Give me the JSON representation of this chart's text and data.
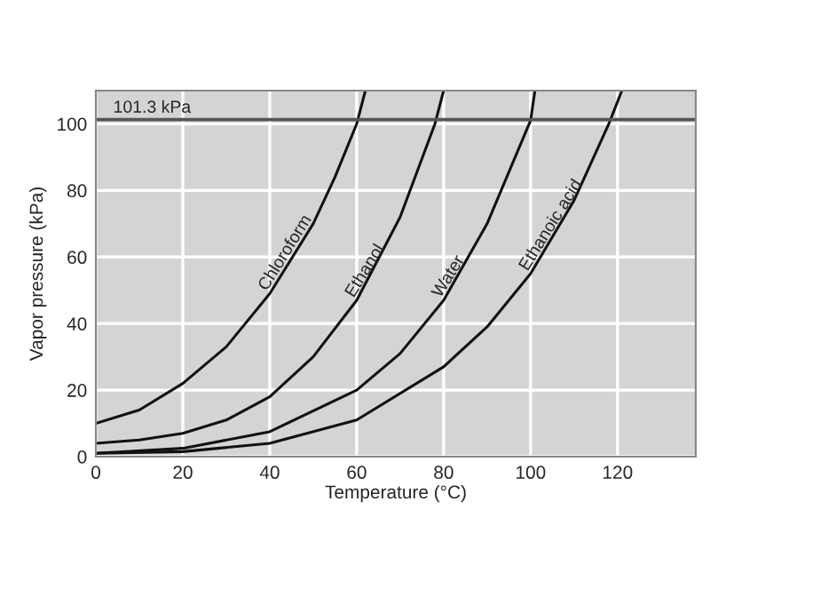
{
  "chart_data": {
    "type": "line",
    "xlabel": "Temperature (°C)",
    "ylabel": "Vapor pressure (kPa)",
    "xlim": [
      0,
      138
    ],
    "ylim": [
      0,
      110
    ],
    "xticks": [
      0,
      20,
      40,
      60,
      80,
      100,
      120
    ],
    "yticks": [
      0,
      20,
      40,
      60,
      80,
      100
    ],
    "grid": true,
    "series": [
      {
        "color": "#111111",
        "x": [
          0,
          10,
          20,
          30,
          40,
          50,
          55,
          60,
          62
        ],
        "values": [
          10,
          14,
          22,
          33,
          49,
          70,
          84,
          100,
          110
        ]
      },
      {
        "color": "#111111",
        "x": [
          0,
          10,
          20,
          30,
          40,
          50,
          60,
          70,
          78,
          80
        ],
        "values": [
          4,
          5,
          7,
          11,
          18,
          30,
          47,
          72,
          100,
          110
        ]
      },
      {
        "color": "#111111",
        "x": [
          0,
          20,
          40,
          60,
          70,
          80,
          90,
          100,
          101
        ],
        "values": [
          1,
          2.5,
          7.5,
          20,
          31,
          47,
          70,
          101,
          110
        ]
      },
      {
        "color": "#111111",
        "x": [
          0,
          20,
          40,
          60,
          80,
          90,
          100,
          110,
          118,
          121
        ],
        "values": [
          1,
          1.5,
          4,
          11,
          27,
          39,
          55,
          77,
          100,
          110
        ]
      }
    ],
    "ref_lines": [
      {
        "axis": "y",
        "value": 101.3,
        "label": "101.3 kPa",
        "color": "#555555"
      }
    ],
    "annotations": [
      {
        "text": "Chloroform",
        "x": 40,
        "y": 49
      },
      {
        "text": "Ethanol",
        "x": 60,
        "y": 47
      },
      {
        "text": "Water",
        "x": 80,
        "y": 47
      },
      {
        "text": "Ethanoic acid",
        "x": 100,
        "y": 55
      }
    ]
  }
}
